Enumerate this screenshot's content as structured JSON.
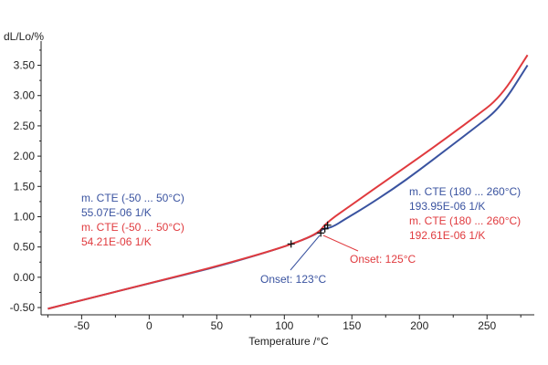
{
  "chart_data": {
    "type": "line",
    "xlabel": "Temperature /°C",
    "ylabel": "dL/Lo/%",
    "xlim": [
      -80,
      285
    ],
    "ylim": [
      -0.62,
      3.9
    ],
    "x_ticks": [
      -50,
      0,
      50,
      100,
      150,
      200,
      250
    ],
    "y_ticks": [
      -0.5,
      0.0,
      0.5,
      1.0,
      1.5,
      2.0,
      2.5,
      3.0,
      3.5
    ],
    "x_tick_labels": [
      "-50",
      "0",
      "50",
      "100",
      "150",
      "200",
      "250"
    ],
    "y_tick_labels": [
      "-0.50",
      "0.00",
      "0.50",
      "1.00",
      "1.50",
      "2.00",
      "2.50",
      "3.00",
      "3.50"
    ],
    "colors": {
      "blue": "#3a53a0",
      "red": "#e03a3e",
      "axis": "#222222"
    },
    "series": [
      {
        "color": "#3a53a0",
        "points": [
          [
            -75,
            -0.52
          ],
          [
            -50,
            -0.38
          ],
          [
            0,
            -0.1
          ],
          [
            50,
            0.17
          ],
          [
            100,
            0.5
          ],
          [
            123,
            0.7
          ],
          [
            128,
            0.8
          ],
          [
            135,
            0.82
          ],
          [
            145,
            0.96
          ],
          [
            160,
            1.16
          ],
          [
            180,
            1.45
          ],
          [
            200,
            1.77
          ],
          [
            220,
            2.11
          ],
          [
            240,
            2.45
          ],
          [
            260,
            2.8
          ],
          [
            280,
            3.5
          ]
        ]
      },
      {
        "color": "#e03a3e",
        "points": [
          [
            -75,
            -0.52
          ],
          [
            -50,
            -0.38
          ],
          [
            0,
            -0.1
          ],
          [
            50,
            0.18
          ],
          [
            100,
            0.5
          ],
          [
            125,
            0.72
          ],
          [
            131,
            0.9
          ],
          [
            150,
            1.2
          ],
          [
            180,
            1.67
          ],
          [
            200,
            1.98
          ],
          [
            220,
            2.3
          ],
          [
            240,
            2.63
          ],
          [
            260,
            2.97
          ],
          [
            280,
            3.67
          ]
        ]
      }
    ],
    "markers": [
      {
        "x": 105,
        "y": 0.55
      },
      {
        "x": 127,
        "y": 0.73
      },
      {
        "x": 130,
        "y": 0.8
      },
      {
        "x": 132,
        "y": 0.86
      }
    ],
    "annotations": {
      "left_blue_1": "m. CTE (-50 ... 50°C)",
      "left_blue_2": "55.07E-06 1/K",
      "left_red_1": "m. CTE (-50 ... 50°C)",
      "left_red_2": "54.21E-06 1/K",
      "right_blue_1": "m. CTE (180 ... 260°C)",
      "right_blue_2": "193.95E-06 1/K",
      "right_red_1": "m. CTE (180 ... 260°C)",
      "right_red_2": "192.61E-06 1/K",
      "onset_blue": "Onset: 123°C",
      "onset_red": "Onset: 125°C"
    }
  }
}
